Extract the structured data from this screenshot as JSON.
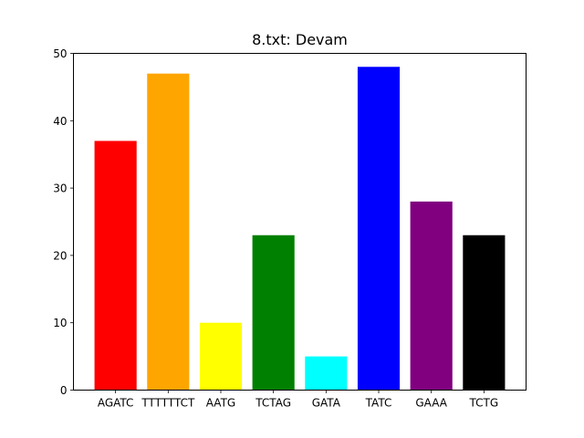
{
  "chart_data": {
    "type": "bar",
    "title": "8.txt: Devam",
    "xlabel": "",
    "ylabel": "",
    "categories": [
      "AGATC",
      "TTTTTTCT",
      "AATG",
      "TCTAG",
      "GATA",
      "TATC",
      "GAAA",
      "TCTG"
    ],
    "values": [
      37,
      47,
      10,
      23,
      5,
      48,
      28,
      23
    ],
    "colors": [
      "#ff0000",
      "#ffa500",
      "#ffff00",
      "#008000",
      "#00ffff",
      "#0000ff",
      "#800080",
      "#000000"
    ],
    "ylim": [
      0,
      50
    ],
    "yticks": [
      0,
      10,
      20,
      30,
      40,
      50
    ],
    "grid": false,
    "legend": "none"
  }
}
